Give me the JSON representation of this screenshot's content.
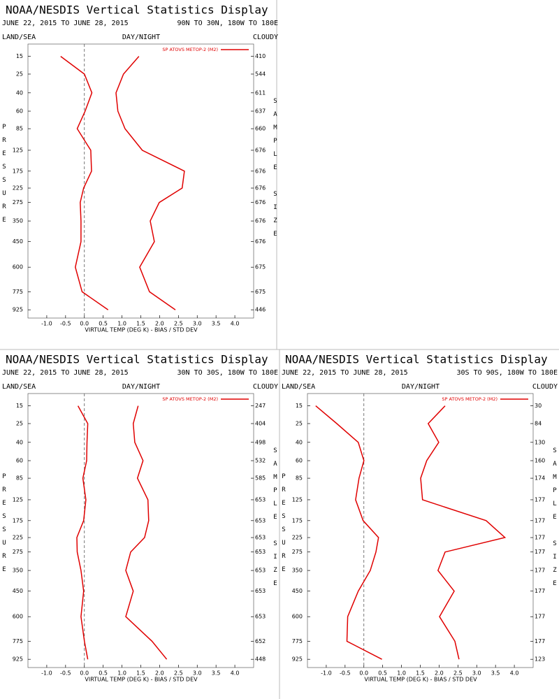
{
  "chart_data": [
    {
      "type": "line",
      "title": "NOAA/NESDIS Vertical Statistics Display",
      "subtitle": "JUNE 22, 2015 TO JUNE 28, 2015",
      "region": "90N TO 30N, 180W TO 180E",
      "land_sea": "LAND/SEA",
      "day_night": "DAY/NIGHT",
      "sky": "CLOUDY",
      "ylabel": "PRESSURE",
      "y2label": "SAMPLE SIZE",
      "xlabel": "VIRTUAL TEMP (DEG K) - BIAS / STD DEV",
      "y": [
        15,
        25,
        40,
        60,
        85,
        125,
        175,
        225,
        275,
        350,
        450,
        600,
        775,
        925
      ],
      "series": [
        {
          "name": "SP ATOVS METOP-2 (M2)",
          "color": "#e00000",
          "values": [
            -0.63,
            0.0,
            0.2,
            0.02,
            -0.19,
            0.17,
            0.19,
            -0.02,
            -0.11,
            -0.09,
            -0.09,
            -0.24,
            -0.06,
            0.63
          ]
        },
        {
          "color": "#e00000",
          "values": [
            1.45,
            1.04,
            0.84,
            0.89,
            1.08,
            1.54,
            2.66,
            2.6,
            1.99,
            1.75,
            1.86,
            1.47,
            1.73,
            2.42
          ]
        }
      ],
      "sample_size": [
        410,
        544,
        611,
        637,
        660,
        676,
        676,
        676,
        676,
        676,
        676,
        675,
        675,
        446
      ],
      "xlim": [
        -1.5,
        4.5
      ],
      "xticks": [
        {
          "value": -1,
          "label": "-1.0"
        },
        -0.5,
        {
          "value": 0,
          "label": "0.0"
        },
        0.5,
        {
          "value": 1,
          "label": "1.0"
        },
        1.5,
        {
          "value": 2,
          "label": "2.0"
        },
        2.5,
        {
          "value": 3,
          "label": "3.0"
        },
        3.5,
        {
          "value": 4,
          "label": "4.0"
        }
      ],
      "ylim": [
        10,
        1000
      ],
      "yticks": [
        15,
        25,
        40,
        60,
        85,
        125,
        175,
        225,
        275,
        350,
        450,
        600,
        775,
        925
      ],
      "yscale": {
        "type": "power",
        "exponent": 0.286,
        "inverted": true
      },
      "zero_line": true,
      "grid": false
    },
    {
      "type": "line",
      "title": "NOAA/NESDIS Vertical Statistics Display",
      "subtitle": "JUNE 22, 2015 TO JUNE 28, 2015",
      "region": "30N TO 30S, 180W TO 180E",
      "land_sea": "LAND/SEA",
      "day_night": "DAY/NIGHT",
      "sky": "CLOUDY",
      "ylabel": "PRESSURE",
      "y2label": "SAMPLE SIZE",
      "xlabel": "VIRTUAL TEMP (DEG K) - BIAS / STD DEV",
      "y": [
        15,
        25,
        40,
        60,
        85,
        125,
        175,
        225,
        275,
        350,
        450,
        600,
        775,
        925
      ],
      "series": [
        {
          "name": "SP ATOVS METOP-2 (M2)",
          "color": "#e00000",
          "values": [
            -0.17,
            0.09,
            0.07,
            0.06,
            -0.04,
            0.04,
            -0.02,
            -0.2,
            -0.19,
            -0.09,
            -0.02,
            -0.09,
            0.0,
            0.09
          ]
        },
        {
          "color": "#e00000",
          "values": [
            1.43,
            1.3,
            1.34,
            1.56,
            1.41,
            1.69,
            1.71,
            1.6,
            1.23,
            1.1,
            1.3,
            1.1,
            1.8,
            2.19
          ]
        }
      ],
      "sample_size": [
        247,
        404,
        498,
        532,
        585,
        653,
        653,
        653,
        653,
        653,
        653,
        653,
        652,
        448
      ],
      "xlim": [
        -1.5,
        4.5
      ],
      "xticks": [
        {
          "value": -1,
          "label": "-1.0"
        },
        -0.5,
        {
          "value": 0,
          "label": "0.0"
        },
        0.5,
        {
          "value": 1,
          "label": "1.0"
        },
        1.5,
        {
          "value": 2,
          "label": "2.0"
        },
        2.5,
        {
          "value": 3,
          "label": "3.0"
        },
        3.5,
        {
          "value": 4,
          "label": "4.0"
        }
      ],
      "ylim": [
        10,
        1000
      ],
      "yticks": [
        15,
        25,
        40,
        60,
        85,
        125,
        175,
        225,
        275,
        350,
        450,
        600,
        775,
        925
      ],
      "yscale": {
        "type": "power",
        "exponent": 0.286,
        "inverted": true
      },
      "zero_line": true,
      "grid": false
    },
    {
      "type": "line",
      "title": "NOAA/NESDIS Vertical Statistics Display",
      "subtitle": "JUNE 22, 2015 TO JUNE 28, 2015",
      "region": "30S TO 90S, 180W TO 180E",
      "land_sea": "LAND/SEA",
      "day_night": "DAY/NIGHT",
      "sky": "CLOUDY",
      "ylabel": "PRESSURE",
      "y2label": "SAMPLE SIZE",
      "xlabel": "VIRTUAL TEMP (DEG K) - BIAS / STD DEV",
      "y": [
        15,
        25,
        40,
        60,
        85,
        125,
        175,
        225,
        275,
        350,
        450,
        600,
        775,
        925
      ],
      "series": [
        {
          "name": "SP ATOVS METOP-2 (M2)",
          "color": "#e00000",
          "values": [
            -1.28,
            -0.72,
            -0.15,
            0.0,
            -0.13,
            -0.22,
            -0.02,
            0.39,
            0.32,
            0.17,
            -0.15,
            -0.43,
            -0.45,
            0.48
          ]
        },
        {
          "color": "#e00000",
          "values": [
            2.16,
            1.71,
            1.99,
            1.67,
            1.51,
            1.56,
            3.25,
            3.75,
            2.16,
            1.97,
            2.4,
            2.01,
            2.42,
            2.53
          ]
        }
      ],
      "sample_size": [
        30,
        84,
        130,
        160,
        174,
        177,
        177,
        177,
        177,
        177,
        177,
        177,
        177,
        123
      ],
      "xlim": [
        -1.5,
        4.5
      ],
      "xticks": [
        {
          "value": -1,
          "label": "-1.0"
        },
        -0.5,
        {
          "value": 0,
          "label": "0.0"
        },
        0.5,
        {
          "value": 1,
          "label": "1.0"
        },
        1.5,
        {
          "value": 2,
          "label": "2.0"
        },
        2.5,
        {
          "value": 3,
          "label": "3.0"
        },
        3.5,
        {
          "value": 4,
          "label": "4.0"
        }
      ],
      "ylim": [
        10,
        1000
      ],
      "yticks": [
        15,
        25,
        40,
        60,
        85,
        125,
        175,
        225,
        275,
        350,
        450,
        600,
        775,
        925
      ],
      "yscale": {
        "type": "power",
        "exponent": 0.286,
        "inverted": true
      },
      "zero_line": true,
      "grid": false
    }
  ]
}
